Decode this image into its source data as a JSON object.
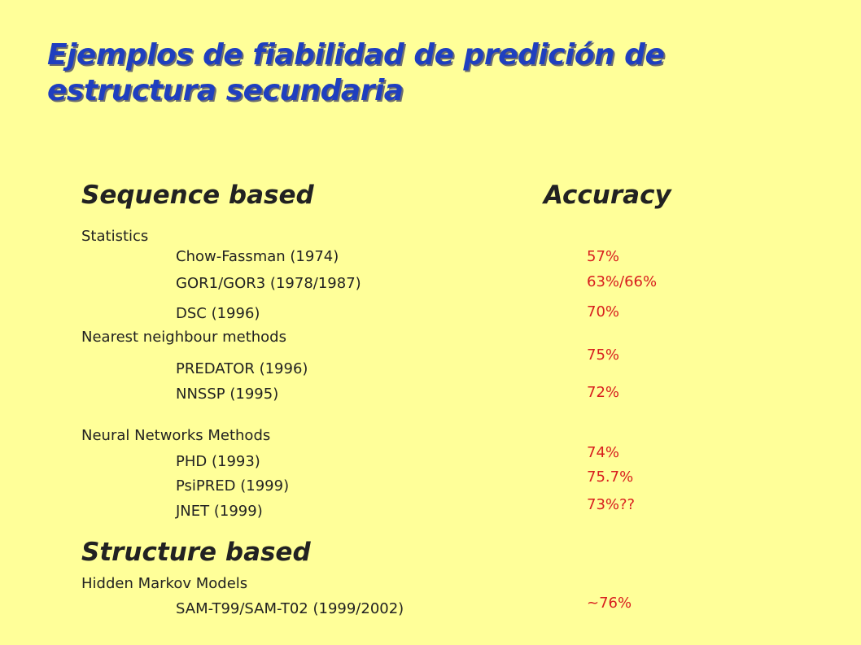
{
  "slide": {
    "title": "Ejemplos de fiabilidad de predición de estructura secundaria",
    "colors": {
      "background": "#FFFF99",
      "title": "#1F3FBF",
      "text": "#222222",
      "accuracy": "#D81E1E"
    }
  },
  "headings": {
    "sequence_based": "Sequence based",
    "accuracy": "Accuracy",
    "structure_based": "Structure based"
  },
  "categories": {
    "statistics": "Statistics",
    "nearest_neighbour": "Nearest neighbour methods",
    "neural_networks": "Neural Networks Methods",
    "hmm": "Hidden Markov Models"
  },
  "methods": [
    {
      "name": "Chow-Fassman (1974)",
      "accuracy": "57%"
    },
    {
      "name": "GOR1/GOR3 (1978/1987)",
      "accuracy": "63%/66%"
    },
    {
      "name": "DSC (1996)",
      "accuracy": "70%"
    },
    {
      "name": "PREDATOR (1996)",
      "accuracy": "75%"
    },
    {
      "name": "NNSSP (1995)",
      "accuracy": "72%"
    },
    {
      "name": "PHD (1993)",
      "accuracy": "74%"
    },
    {
      "name": "PsiPRED (1999)",
      "accuracy": "75.7%"
    },
    {
      "name": "JNET (1999)",
      "accuracy": "73%??"
    },
    {
      "name": "SAM-T99/SAM-T02 (1999/2002)",
      "accuracy": "~76%"
    }
  ]
}
